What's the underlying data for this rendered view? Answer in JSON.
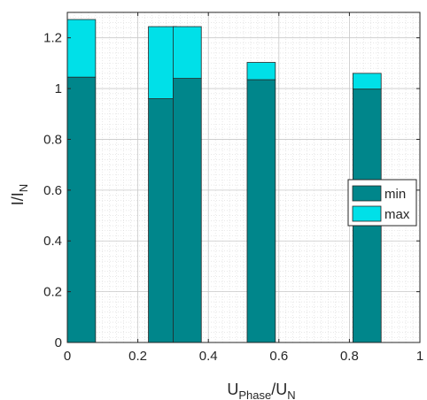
{
  "chart_data": {
    "type": "bar",
    "stacked": true,
    "x": [
      0.04,
      0.27,
      0.34,
      0.55,
      0.85
    ],
    "bar_width": 0.08,
    "series": [
      {
        "name": "min",
        "color": "#00868b",
        "values": [
          1.045,
          0.96,
          1.04,
          1.035,
          0.998
        ]
      },
      {
        "name": "max",
        "color": "#00e0e8",
        "values": [
          0.227,
          0.284,
          0.204,
          0.068,
          0.062
        ]
      }
    ],
    "xlim": [
      0,
      1
    ],
    "ylim": [
      0,
      1.3
    ],
    "x_ticks": [
      0,
      0.2,
      0.4,
      0.6,
      0.8,
      1
    ],
    "x_tick_labels": [
      "0",
      "0.2",
      "0.4",
      "0.6",
      "0.8",
      "1"
    ],
    "y_ticks": [
      0,
      0.2,
      0.4,
      0.6,
      0.8,
      1,
      1.2
    ],
    "y_tick_labels": [
      "0",
      "0.2",
      "0.4",
      "0.6",
      "0.8",
      "1",
      "1.2"
    ],
    "xlabel": {
      "main": "U",
      "sub1": "Phase",
      "mid": "/U",
      "sub2": "N"
    },
    "ylabel": {
      "main": "I/I",
      "sub": "N"
    },
    "grid": true,
    "minor_grid": true,
    "legend_position": "right",
    "legend": [
      "min",
      "max"
    ]
  }
}
